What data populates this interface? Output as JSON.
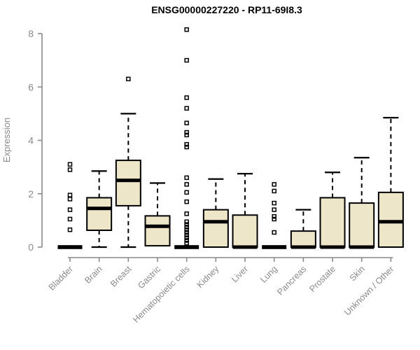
{
  "title": "ENSG00000227220 - RP11-69I8.3",
  "colors": {
    "box_fill": "#ede6c8",
    "box_stroke": "#000000",
    "median": "#000000",
    "whisker": "#000000",
    "axis": "#8a8a8a",
    "title_text": "#000000",
    "background": "#ffffff"
  },
  "chart_data": {
    "type": "boxplot",
    "title": "ENSG00000227220 - RP11-69I8.3",
    "xlabel": "",
    "ylabel": "Expression",
    "ylim": [
      0,
      8
    ],
    "yticks": [
      0,
      2,
      4,
      6,
      8
    ],
    "grid": "off",
    "legend": "none",
    "categories": [
      "Bladder",
      "Brain",
      "Breast",
      "Gastric",
      "Hematopoietic cells",
      "Kidney",
      "Liver",
      "Lung",
      "Pancreas",
      "Prostate",
      "Skin",
      "Unknown / Other"
    ],
    "boxes": [
      {
        "category": "Bladder",
        "low": 0,
        "q1": 0,
        "median": 0,
        "q3": 0,
        "high": 0,
        "outliers": [
          3.1,
          2.9,
          1.95,
          1.8,
          1.4,
          1.05,
          0.65
        ]
      },
      {
        "category": "Brain",
        "low": 0,
        "q1": 0.63,
        "median": 1.45,
        "q3": 1.85,
        "high": 2.85,
        "outliers": []
      },
      {
        "category": "Breast",
        "low": 0,
        "q1": 1.55,
        "median": 2.5,
        "q3": 3.25,
        "high": 5.0,
        "outliers": [
          6.3
        ]
      },
      {
        "category": "Gastric",
        "low": 0.05,
        "q1": 0.05,
        "median": 0.78,
        "q3": 1.17,
        "high": 2.4,
        "outliers": []
      },
      {
        "category": "Hematopoietic cells",
        "low": 0,
        "q1": 0,
        "median": 0,
        "q3": 0,
        "high": 0,
        "outliers": [
          8.15,
          7.0,
          5.6,
          5.2,
          4.65,
          4.3,
          4.2,
          3.85,
          3.75,
          2.6,
          2.35,
          2.05,
          1.7,
          1.25,
          0.95,
          0.85,
          0.75,
          0.65,
          0.55,
          0.45,
          0.35,
          0.25,
          0.15
        ]
      },
      {
        "category": "Kidney",
        "low": 0,
        "q1": 0,
        "median": 0.95,
        "q3": 1.4,
        "high": 2.55,
        "outliers": []
      },
      {
        "category": "Liver",
        "low": 0,
        "q1": 0,
        "median": 0,
        "q3": 1.2,
        "high": 2.75,
        "outliers": []
      },
      {
        "category": "Lung",
        "low": 0,
        "q1": 0,
        "median": 0,
        "q3": 0,
        "high": 0,
        "outliers": [
          2.35,
          2.1,
          1.65,
          1.4,
          1.15,
          1.05,
          0.55
        ]
      },
      {
        "category": "Pancreas",
        "low": 0,
        "q1": 0,
        "median": 0,
        "q3": 0.6,
        "high": 1.4,
        "outliers": []
      },
      {
        "category": "Prostate",
        "low": 0,
        "q1": 0,
        "median": 0,
        "q3": 1.85,
        "high": 2.8,
        "outliers": []
      },
      {
        "category": "Skin",
        "low": 0,
        "q1": 0,
        "median": 0,
        "q3": 1.65,
        "high": 3.35,
        "outliers": []
      },
      {
        "category": "Unknown / Other",
        "low": 0,
        "q1": 0,
        "median": 0.95,
        "q3": 2.05,
        "high": 4.85,
        "outliers": []
      }
    ]
  }
}
